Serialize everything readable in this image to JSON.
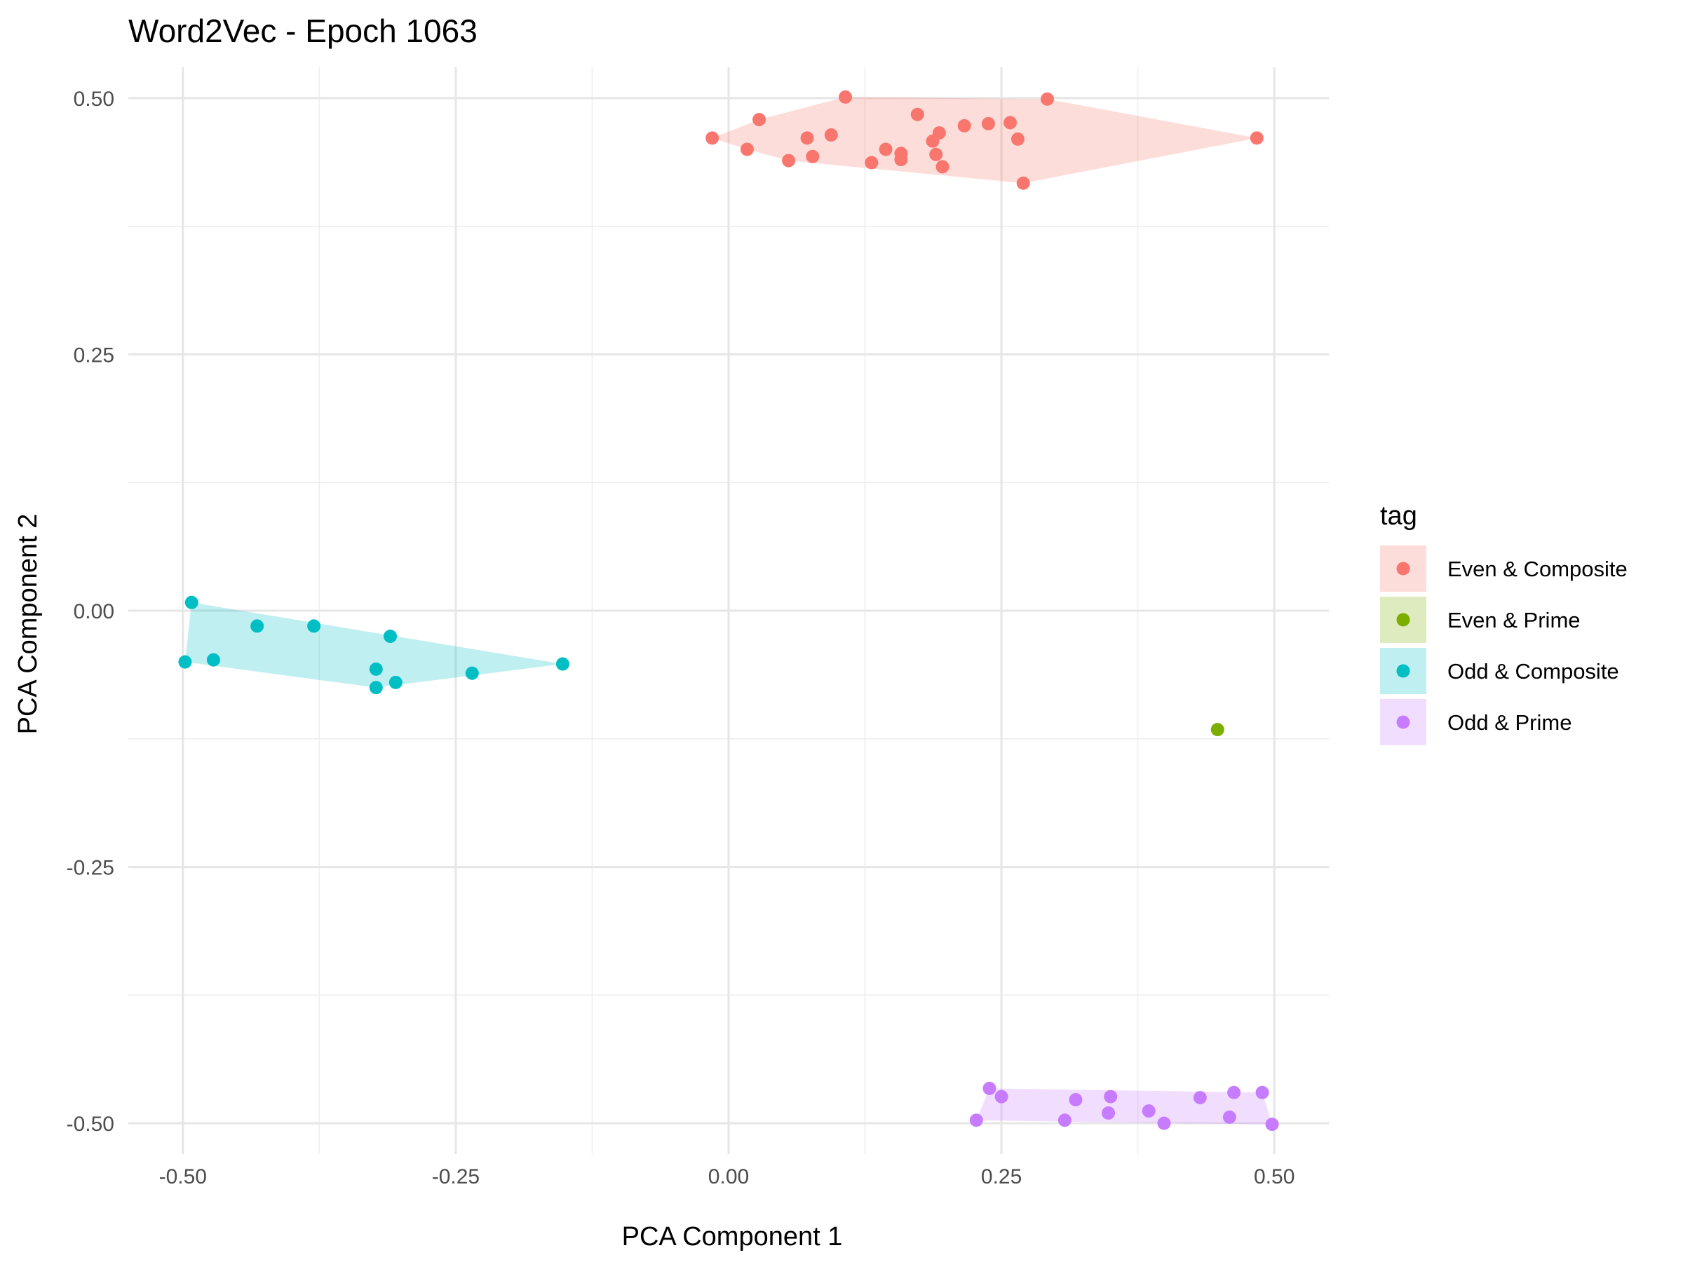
{
  "chart_data": {
    "type": "scatter",
    "title": "Word2Vec - Epoch 1063",
    "xlabel": "PCA Component 1",
    "ylabel": "PCA Component 2",
    "xlim": [
      -0.55,
      0.55
    ],
    "ylim": [
      -0.53,
      0.53
    ],
    "x_ticks": [
      {
        "value": -0.5,
        "label": "-0.50"
      },
      {
        "value": -0.25,
        "label": "-0.25"
      },
      {
        "value": 0.0,
        "label": "0.00"
      },
      {
        "value": 0.25,
        "label": "0.25"
      },
      {
        "value": 0.5,
        "label": "0.50"
      }
    ],
    "y_ticks": [
      {
        "value": 0.5,
        "label": "0.50"
      },
      {
        "value": 0.25,
        "label": "0.25"
      },
      {
        "value": 0.0,
        "label": "0.00"
      },
      {
        "value": -0.25,
        "label": "-0.25"
      },
      {
        "value": -0.5,
        "label": "-0.50"
      }
    ],
    "grid": true,
    "legend": {
      "title": "tag",
      "position": "right"
    },
    "series": [
      {
        "name": "Even & Composite",
        "color": "#F8766D",
        "hull": true,
        "points": [
          [
            -0.015,
            0.461
          ],
          [
            0.017,
            0.45
          ],
          [
            0.028,
            0.479
          ],
          [
            0.055,
            0.439
          ],
          [
            0.072,
            0.461
          ],
          [
            0.077,
            0.443
          ],
          [
            0.094,
            0.464
          ],
          [
            0.107,
            0.501
          ],
          [
            0.131,
            0.437
          ],
          [
            0.144,
            0.45
          ],
          [
            0.158,
            0.446
          ],
          [
            0.158,
            0.44
          ],
          [
            0.173,
            0.484
          ],
          [
            0.187,
            0.458
          ],
          [
            0.19,
            0.445
          ],
          [
            0.193,
            0.466
          ],
          [
            0.196,
            0.433
          ],
          [
            0.216,
            0.473
          ],
          [
            0.238,
            0.475
          ],
          [
            0.258,
            0.476
          ],
          [
            0.265,
            0.46
          ],
          [
            0.27,
            0.417
          ],
          [
            0.292,
            0.499
          ],
          [
            0.484,
            0.461
          ]
        ]
      },
      {
        "name": "Even & Prime",
        "color": "#7CAE00",
        "hull": false,
        "points": [
          [
            0.448,
            -0.116
          ]
        ]
      },
      {
        "name": "Odd & Composite",
        "color": "#00BFC4",
        "hull": true,
        "points": [
          [
            -0.498,
            -0.05
          ],
          [
            -0.492,
            0.008
          ],
          [
            -0.472,
            -0.048
          ],
          [
            -0.432,
            -0.015
          ],
          [
            -0.38,
            -0.015
          ],
          [
            -0.323,
            -0.057
          ],
          [
            -0.323,
            -0.075
          ],
          [
            -0.31,
            -0.025
          ],
          [
            -0.305,
            -0.07
          ],
          [
            -0.235,
            -0.061
          ],
          [
            -0.152,
            -0.052
          ]
        ]
      },
      {
        "name": "Odd & Prime",
        "color": "#C77CFF",
        "hull": true,
        "points": [
          [
            0.227,
            -0.497
          ],
          [
            0.239,
            -0.466
          ],
          [
            0.25,
            -0.474
          ],
          [
            0.318,
            -0.477
          ],
          [
            0.308,
            -0.497
          ],
          [
            0.348,
            -0.49
          ],
          [
            0.35,
            -0.474
          ],
          [
            0.385,
            -0.488
          ],
          [
            0.399,
            -0.5
          ],
          [
            0.432,
            -0.475
          ],
          [
            0.459,
            -0.494
          ],
          [
            0.463,
            -0.47
          ],
          [
            0.489,
            -0.47
          ],
          [
            0.498,
            -0.501
          ]
        ]
      }
    ]
  }
}
